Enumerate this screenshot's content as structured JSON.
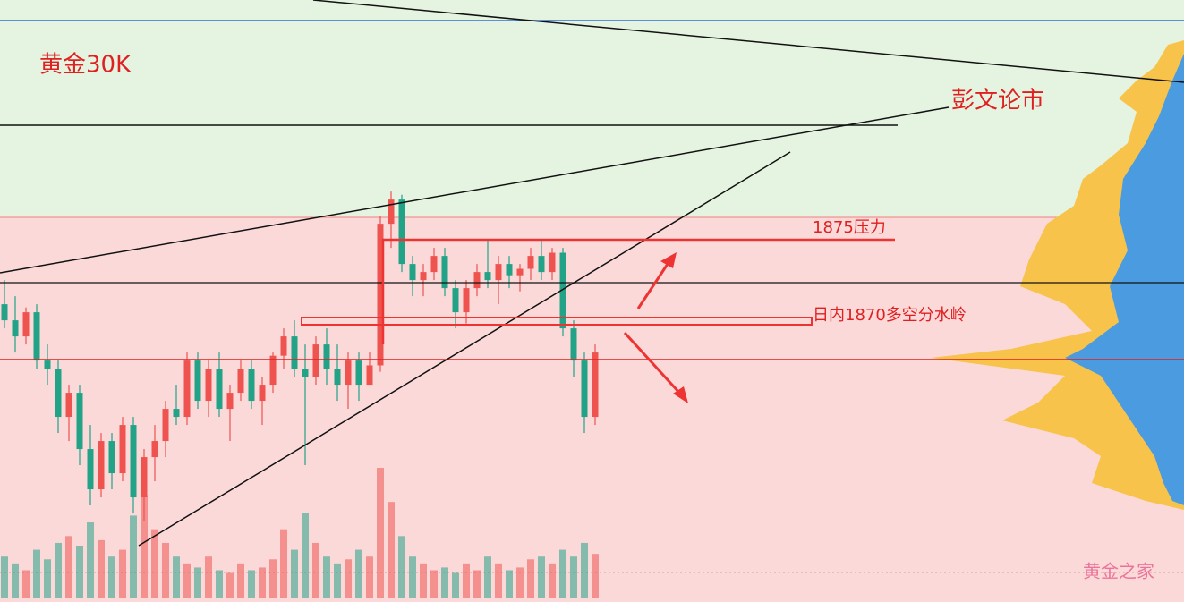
{
  "chart_data": {
    "type": "candlestick",
    "up_color": "#ef5350",
    "down_color": "#22a387",
    "ylim": [
      1852.5,
      1889.9
    ],
    "open": [
      1871,
      1870,
      1869,
      1870.5,
      1867.5,
      1867,
      1864,
      1865.5,
      1862,
      1859.5,
      1862.5,
      1860.5,
      1863.5,
      1859,
      1861.5,
      1862.5,
      1864.5,
      1864,
      1867.5,
      1865,
      1867,
      1864.5,
      1865.5,
      1867,
      1865,
      1866,
      1867.8,
      1869,
      1867,
      1866.5,
      1868.5,
      1867,
      1866,
      1867.5,
      1866,
      1867.2,
      1876,
      1877.5,
      1873.5,
      1872.5,
      1873,
      1874,
      1872,
      1870.5,
      1872,
      1873,
      1872.5,
      1873.5,
      1872.8,
      1873.2,
      1874,
      1873,
      1874.2,
      1869.5,
      1867.5,
      1864
    ],
    "high": [
      1872.5,
      1871.5,
      1870.8,
      1871,
      1868.5,
      1867.5,
      1866,
      1866,
      1863.5,
      1863,
      1863,
      1864,
      1864,
      1862,
      1863.5,
      1865,
      1866,
      1868,
      1868,
      1867.5,
      1868,
      1866,
      1867.5,
      1867.5,
      1866.5,
      1868,
      1869.5,
      1870,
      1868.5,
      1869,
      1869.5,
      1868.5,
      1868,
      1868,
      1868,
      1876.5,
      1878,
      1877.8,
      1874,
      1873.5,
      1874.5,
      1874.5,
      1872.5,
      1872.5,
      1873.5,
      1875,
      1874,
      1874,
      1873.5,
      1874.5,
      1875,
      1874.5,
      1874.5,
      1870,
      1868,
      1868.5
    ],
    "low": [
      1869.5,
      1868,
      1868.5,
      1867,
      1866,
      1863,
      1862.5,
      1861,
      1858.5,
      1859,
      1859.5,
      1860,
      1858,
      1857.5,
      1860,
      1861.5,
      1863.5,
      1863.5,
      1864.5,
      1864,
      1864,
      1862.5,
      1865,
      1864.5,
      1863.5,
      1865.5,
      1867,
      1866.5,
      1861,
      1866,
      1866,
      1865,
      1864.5,
      1865,
      1866,
      1866.8,
      1874.5,
      1873,
      1871.5,
      1871.5,
      1872.5,
      1871.5,
      1869.5,
      1869.8,
      1871.5,
      1872,
      1871,
      1872,
      1871.8,
      1872.5,
      1872.5,
      1872.5,
      1869,
      1866.5,
      1863,
      1863.5
    ],
    "close": [
      1870,
      1869,
      1870.5,
      1867.5,
      1867,
      1864,
      1865.5,
      1862,
      1859.5,
      1862.5,
      1860.5,
      1863.5,
      1859,
      1861.5,
      1862.5,
      1864.5,
      1864,
      1867.5,
      1865,
      1867,
      1864.5,
      1865.5,
      1867,
      1865,
      1866,
      1867.8,
      1869,
      1867,
      1866.5,
      1868.5,
      1867,
      1866,
      1867.5,
      1866,
      1867.2,
      1876,
      1877.5,
      1873.5,
      1872.5,
      1873,
      1874,
      1872,
      1870.5,
      1872,
      1873,
      1872.5,
      1873.5,
      1872.8,
      1873.2,
      1874,
      1873,
      1874.2,
      1869.5,
      1867.5,
      1864,
      1868
    ],
    "volume": [
      30,
      25,
      20,
      35,
      28,
      40,
      45,
      38,
      55,
      42,
      30,
      35,
      60,
      75,
      50,
      40,
      30,
      25,
      22,
      30,
      20,
      18,
      25,
      20,
      22,
      28,
      50,
      35,
      62,
      40,
      30,
      25,
      28,
      35,
      30,
      95,
      70,
      45,
      30,
      25,
      20,
      22,
      18,
      25,
      20,
      30,
      25,
      20,
      22,
      28,
      30,
      25,
      35,
      30,
      40,
      32
    ],
    "annotations": [
      "黄金30K",
      "彭文论市",
      "1875压力",
      "日内1870多空分水岭",
      "黄金之家"
    ]
  }
}
